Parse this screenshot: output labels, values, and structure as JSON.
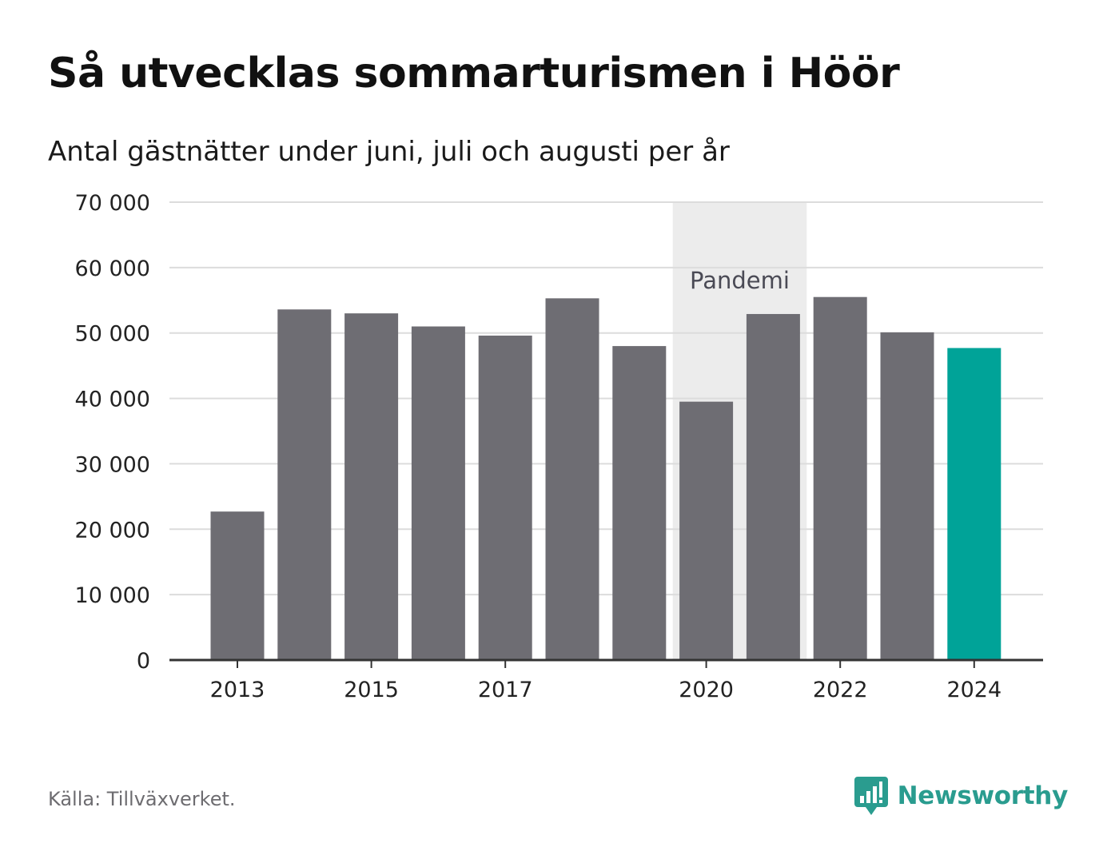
{
  "title": "Så utvecklas sommarturismen i Höör",
  "subtitle": "Antal gästnätter under juni, juli och augusti per år",
  "source": "Källa: Tillväxverket.",
  "brand": {
    "name": "Newsworthy",
    "icon": "newsworthy-logo-icon",
    "color": "#2a9c8f"
  },
  "chart_data": {
    "type": "bar",
    "categories": [
      "2013",
      "2014",
      "2015",
      "2016",
      "2017",
      "2018",
      "2019",
      "2020",
      "2021",
      "2022",
      "2023",
      "2024"
    ],
    "values": [
      22700,
      53600,
      53000,
      51000,
      49600,
      55300,
      48000,
      39500,
      52900,
      55500,
      50100,
      47700
    ],
    "highlight_category": "2024",
    "colors": {
      "bar": "#6e6d73",
      "highlight": "#00a398",
      "band": "#ececec",
      "grid": "#dcdcdc",
      "axis": "#333333"
    },
    "ylim": [
      0,
      70000
    ],
    "yticks": [
      0,
      10000,
      20000,
      30000,
      40000,
      50000,
      60000,
      70000
    ],
    "ytick_labels": [
      "0",
      "10 000",
      "20 000",
      "30 000",
      "40 000",
      "50 000",
      "60 000",
      "70 000"
    ],
    "xtick_labels": [
      "2013",
      "2015",
      "2017",
      "2020",
      "2022",
      "2024"
    ],
    "annotation": {
      "label": "Pandemi",
      "from": "2020",
      "to": "2021"
    },
    "grid": true,
    "xlabel": "",
    "ylabel": ""
  }
}
